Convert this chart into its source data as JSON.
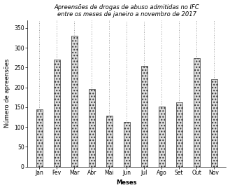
{
  "title_line1": "Apreensões de drogas de abuso admitidas no IFC",
  "title_line2": "entre os meses de janeiro a novembro de 2017",
  "xlabel": "Meses",
  "ylabel": "Número de apreensões",
  "categories": [
    "Jan",
    "Fev",
    "Mar",
    "Abr",
    "Mai",
    "Jun",
    "Jul",
    "Ago",
    "Set",
    "Out",
    "Nov"
  ],
  "values": [
    145,
    270,
    330,
    195,
    128,
    112,
    255,
    152,
    163,
    273,
    220
  ],
  "ylim": [
    0,
    370
  ],
  "yticks": [
    0,
    50,
    100,
    150,
    200,
    250,
    300,
    350
  ],
  "bar_color": "#dddddd",
  "hatch": "....",
  "edgecolor": "#333333",
  "title_fontsize": 6.0,
  "axis_label_fontsize": 6.0,
  "tick_fontsize": 5.5,
  "bar_width": 0.35,
  "linewidth": 0.5
}
